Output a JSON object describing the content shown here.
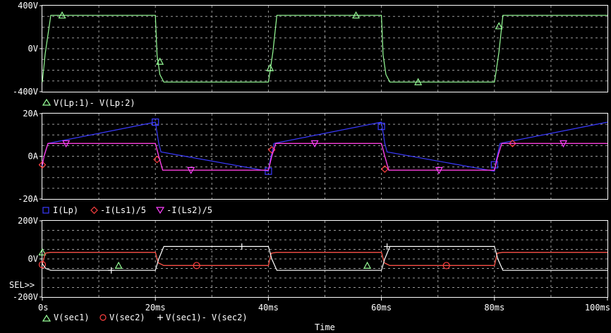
{
  "chart_data": [
    {
      "type": "line",
      "panel": "top",
      "ylim": [
        -400,
        400
      ],
      "yticks": [
        {
          "v": 400,
          "label": "400V"
        },
        {
          "v": 0,
          "label": "0V"
        },
        {
          "v": -400,
          "label": "-400V"
        }
      ],
      "grid": true,
      "series": [
        {
          "name": "V(Lp:1)- V(Lp:2)",
          "color": "#98ff98",
          "marker": "triangle-up",
          "x": [
            0,
            0.5,
            1.5,
            20,
            20.3,
            20.8,
            21.5,
            40,
            40.3,
            40.8,
            41.5,
            60,
            60.3,
            60.8,
            61.5,
            80,
            80.3,
            80.8,
            81.5,
            100
          ],
          "y": [
            -310,
            -50,
            310,
            310,
            -60,
            -240,
            -310,
            -310,
            -210,
            -30,
            310,
            310,
            -60,
            -240,
            -310,
            -310,
            -210,
            -30,
            310,
            310
          ],
          "markers": [
            {
              "x": 3.5,
              "y": 310
            },
            {
              "x": 20.8,
              "y": -120
            },
            {
              "x": 40.3,
              "y": -180
            },
            {
              "x": 55.5,
              "y": 310
            },
            {
              "x": 66.5,
              "y": -310
            },
            {
              "x": 80.8,
              "y": 210
            }
          ]
        }
      ]
    },
    {
      "type": "line",
      "panel": "middle",
      "ylim": [
        -20,
        20
      ],
      "yticks": [
        {
          "v": 20,
          "label": "20A"
        },
        {
          "v": 0,
          "label": "0A"
        },
        {
          "v": -20,
          "label": "-20A"
        }
      ],
      "grid": true,
      "series": [
        {
          "name": "I(Lp)",
          "color": "#3a3aff",
          "marker": "square",
          "x": [
            0,
            0.3,
            1,
            20,
            20.6,
            21,
            40,
            40.3,
            41,
            60,
            60.6,
            61,
            80,
            80.3,
            81,
            100
          ],
          "y": [
            -4.5,
            0,
            6,
            16,
            6,
            2,
            -7,
            -2,
            6,
            16,
            6,
            2,
            -7,
            -2,
            6,
            16
          ],
          "markers": [
            {
              "x": 20,
              "y": 16
            },
            {
              "x": 40,
              "y": -7
            },
            {
              "x": 60,
              "y": 14
            },
            {
              "x": 80,
              "y": -4
            }
          ]
        },
        {
          "name": "-I(Ls1)/5",
          "color": "#ff4040",
          "marker": "diamond",
          "x": [
            0,
            0.3,
            1,
            20,
            20.6,
            21.3,
            40,
            40.6,
            41.3,
            60,
            60.6,
            61.3,
            80,
            80.6,
            81.3,
            100
          ],
          "y": [
            -4,
            0,
            6,
            6,
            0,
            -6.5,
            -6.5,
            0,
            6,
            6,
            0,
            -6.5,
            -6.5,
            0,
            6,
            6
          ],
          "markers": [
            {
              "x": 0,
              "y": -4
            },
            {
              "x": 20.3,
              "y": -1.5
            },
            {
              "x": 40.6,
              "y": 3
            },
            {
              "x": 60.6,
              "y": -6
            },
            {
              "x": 83.2,
              "y": 6
            }
          ]
        },
        {
          "name": "-I(Ls2)/5",
          "color": "#ff40ff",
          "marker": "triangle-down",
          "x": [
            0,
            0.3,
            1,
            20,
            20.6,
            21.3,
            40,
            40.6,
            41.3,
            60,
            60.6,
            61.3,
            80,
            80.6,
            81.3,
            100
          ],
          "y": [
            -4,
            0,
            6,
            6,
            0,
            -6.5,
            -6.5,
            0,
            6,
            6,
            0,
            -6.5,
            -6.5,
            0,
            6,
            6
          ],
          "markers": [
            {
              "x": 4.2,
              "y": 6
            },
            {
              "x": 26.3,
              "y": -6.5
            },
            {
              "x": 48.2,
              "y": 6
            },
            {
              "x": 70.2,
              "y": -6.5
            },
            {
              "x": 92.2,
              "y": 6
            }
          ]
        }
      ]
    },
    {
      "type": "line",
      "panel": "bottom",
      "ylim": [
        -200,
        200
      ],
      "yticks": [
        {
          "v": 200,
          "label": "200V"
        },
        {
          "v": 0,
          "label": "0V"
        },
        {
          "v": -200,
          "label": "-200V"
        }
      ],
      "grid": true,
      "xlim": [
        0,
        100
      ],
      "xticks": [
        {
          "v": 0,
          "label": "0s"
        },
        {
          "v": 20,
          "label": "20ms"
        },
        {
          "v": 40,
          "label": "40ms"
        },
        {
          "v": 60,
          "label": "60ms"
        },
        {
          "v": 80,
          "label": "80ms"
        },
        {
          "v": 100,
          "label": "100ms"
        }
      ],
      "xlabel": "Time",
      "series": [
        {
          "name": "V(sec1)",
          "color": "#98ff98",
          "marker": "triangle-up",
          "x": [
            0,
            0.5,
            1.5,
            20,
            20.5,
            21.5,
            40,
            40.5,
            41.5,
            60,
            60.5,
            61.5,
            80,
            80.5,
            81.5,
            100
          ],
          "y": [
            -30,
            30,
            35,
            35,
            -20,
            -35,
            -35,
            30,
            35,
            35,
            -20,
            -35,
            -35,
            30,
            35,
            35
          ],
          "markers": [
            {
              "x": 0,
              "y": 35
            },
            {
              "x": 13.5,
              "y": -35
            },
            {
              "x": 57.5,
              "y": -35
            }
          ]
        },
        {
          "name": "V(sec2)",
          "color": "#ff4040",
          "marker": "circle",
          "x": [
            0,
            0.5,
            1.5,
            20,
            20.5,
            21.5,
            40,
            40.5,
            41.5,
            60,
            60.5,
            61.5,
            80,
            80.5,
            81.5,
            100
          ],
          "y": [
            -30,
            30,
            35,
            35,
            -20,
            -35,
            -35,
            30,
            35,
            35,
            -20,
            -35,
            -35,
            30,
            35,
            35
          ],
          "markers": [
            {
              "x": 0,
              "y": -30
            },
            {
              "x": 27.3,
              "y": -35
            },
            {
              "x": 71.5,
              "y": -35
            }
          ]
        },
        {
          "name": "V(sec1)- V(sec2)",
          "color": "#ffffff",
          "marker": "plus",
          "x": [
            0,
            0.6,
            1.5,
            20,
            20.6,
            21.5,
            40,
            40.6,
            41.5,
            60,
            60.6,
            61.5,
            80,
            80.6,
            81.5,
            100
          ],
          "y": [
            -25,
            -50,
            -60,
            -60,
            0,
            65,
            65,
            0,
            -60,
            -60,
            0,
            65,
            65,
            0,
            -60,
            -60
          ],
          "markers": [
            {
              "x": 12.2,
              "y": -60
            },
            {
              "x": 35.3,
              "y": 65
            },
            {
              "x": 61,
              "y": 65
            }
          ]
        }
      ]
    }
  ],
  "legend": {
    "top": [
      "V(Lp:1)- V(Lp:2)"
    ],
    "middle": [
      "I(Lp)",
      "-I(Ls1)/5",
      "-I(Ls2)/5"
    ],
    "bottom": [
      "V(sec1)",
      "V(sec2)",
      "V(sec1)- V(sec2)"
    ]
  },
  "sel_label": "SEL>>"
}
